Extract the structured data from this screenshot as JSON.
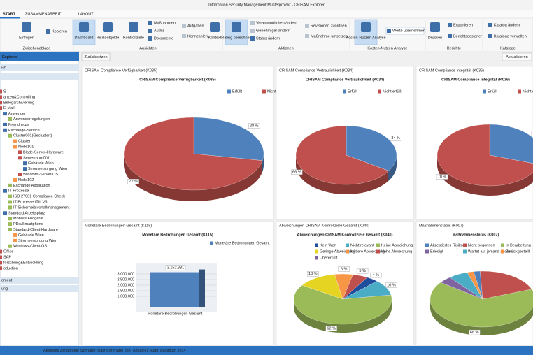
{
  "window": {
    "title": "Information Security Management Musterprojekt - CRISAM Explorer",
    "tabs": [
      "START",
      "ZUSAMMENARBEIT",
      "LAYOUT"
    ]
  },
  "ribbon": {
    "groups": [
      {
        "label": "Zwischenablage",
        "buttons": [
          "Einfügen",
          "Kopieren"
        ]
      },
      {
        "label": "Ansichten",
        "buttons": [
          "Dashboard",
          "Risikoobjekte",
          "Kontrollziele",
          "Maßnahmen",
          "Audits",
          "Dokumente",
          "Aufgaben",
          "Kennzahlen",
          "Kontext"
        ]
      },
      {
        "label": "Aktionen",
        "buttons": [
          "Rating berechnen",
          "Verantwortlichen ändern",
          "Genehmiger ändern",
          "Status ändern",
          "Revisionen zuordnen",
          "Maßnahme umsetzen"
        ]
      },
      {
        "label": "Kosten-Nutzen Analyse",
        "buttons": [
          "Kosten-Nutzen Analyse",
          "Werte übernehmen"
        ]
      },
      {
        "label": "Berichte",
        "buttons": [
          "Drucken",
          "Exportieren",
          "Berichtsdesigner"
        ]
      },
      {
        "label": "Kataloge",
        "buttons": [
          "Katalog ändern",
          "Kataloge verwalten"
        ]
      }
    ]
  },
  "explorer": {
    "title": "Explorer",
    "sections_top": [
      "ich"
    ],
    "sections_bottom": [
      "ement",
      "ung"
    ],
    "tree": [
      {
        "label": "S",
        "level": 0
      },
      {
        "label": "anzen&Controlling",
        "level": 0
      },
      {
        "label": "Belegarchivierung",
        "level": 0
      },
      {
        "label": "E-Mail",
        "level": 0
      },
      {
        "label": "Anwender",
        "level": 1
      },
      {
        "label": "Anwenderregelungen",
        "level": 2
      },
      {
        "label": "Fremdnetze",
        "level": 1
      },
      {
        "label": "Exchange-Service",
        "level": 1
      },
      {
        "label": "Cluster001(Geclustert)",
        "level": 2
      },
      {
        "label": "Cluster",
        "level": 3
      },
      {
        "label": "Node101",
        "level": 3
      },
      {
        "label": "Blade-Server-Hardware",
        "level": 4
      },
      {
        "label": "Serverraum001",
        "level": 4
      },
      {
        "label": "Gebäude Wien",
        "level": 5
      },
      {
        "label": "Stromversorgung Wien",
        "level": 5
      },
      {
        "label": "Windows-Server-OS",
        "level": 4
      },
      {
        "label": "Node102",
        "level": 3
      },
      {
        "label": "Exchange Applikation",
        "level": 2
      },
      {
        "label": "IT-Prozesse",
        "level": 1
      },
      {
        "label": "ISO 27001 Compliance Check",
        "level": 2
      },
      {
        "label": "IT-Prozesse ITIL V3",
        "level": 2
      },
      {
        "label": "IT-Sicherheitsvorfallmanagement",
        "level": 2
      },
      {
        "label": "Standard Arbeitsplatz",
        "level": 1
      },
      {
        "label": "Mobiles Endgerät",
        "level": 2
      },
      {
        "label": "PDA/Smartphone",
        "level": 2
      },
      {
        "label": "Standard-Client-Hardware",
        "level": 2
      },
      {
        "label": "Gebäude Wien",
        "level": 3
      },
      {
        "label": "Stromversorgung Wien",
        "level": 3
      },
      {
        "label": "Windows-Client-OS",
        "level": 2
      },
      {
        "label": "Office",
        "level": 0
      },
      {
        "label": "SAP",
        "level": 0
      },
      {
        "label": "forschung&Entwicklung",
        "level": 0
      },
      {
        "label": "oduktion",
        "level": 0
      }
    ]
  },
  "toolbar": {
    "reset": "Zurücksetzen",
    "refresh": "Aktualisieren"
  },
  "charts": [
    {
      "type": "pie",
      "caption": "CRISAM Compliance Verfügbarkeit (K035)",
      "title": "CRISAM Compliance Verfügbarkeit (K035)",
      "slices": [
        {
          "name": "Erfüllt",
          "color": "#4f81bd",
          "value": 28,
          "label": "28 %"
        },
        {
          "name": "Nicht erfüllt",
          "color": "#c0504d",
          "value": 72,
          "label": "72 %"
        }
      ]
    },
    {
      "type": "pie",
      "caption": "CRISAM Compliance Vertraulichkeit (K034)",
      "title": "CRISAM Compliance Vertraulichkeit (K034)",
      "slices": [
        {
          "name": "Erfüllt",
          "color": "#4f81bd",
          "value": 34,
          "label": "34 %"
        },
        {
          "name": "Nicht erfüllt",
          "color": "#c0504d",
          "value": 66,
          "label": "66 %"
        }
      ]
    },
    {
      "type": "pie",
      "caption": "CRISAM Compliance Integrität (K036)",
      "title": "CRISAM Compliance Integrität (K036)",
      "slices": [
        {
          "name": "Erfüllt",
          "color": "#4f81bd",
          "value": 30,
          "label": "30 %"
        },
        {
          "name": "Nicht erfüllt",
          "color": "#c0504d",
          "value": 70,
          "label": "70 %"
        }
      ]
    },
    {
      "type": "bar",
      "caption": "Monetäre Bedrohungen Gesamt (K115)",
      "title": "Monetäre Bedrohungen Gesamt (K115)",
      "series_name": "Monetäre Bedrohungen Gesamt",
      "color": "#4f81bd",
      "category": "Monetäre Bedrohungen Gesamt",
      "value": 3152381,
      "value_label": "3.152.381",
      "ylim": [
        0,
        3500000
      ],
      "yticks": [
        {
          "value": 1000000,
          "label": "1.000.000"
        },
        {
          "value": 1500000,
          "label": "1.500.000"
        },
        {
          "value": 2000000,
          "label": "2.000.000"
        },
        {
          "value": 2500000,
          "label": "2.500.000"
        },
        {
          "value": 3000000,
          "label": "3.000.000"
        }
      ]
    },
    {
      "type": "pie",
      "caption": "Abweichungen CRISAM Kontrollziele Gesamt (K040)",
      "title": "Abweichungen CRISAM Kontrollziele Gesamt (K040)",
      "slices": [
        {
          "name": "Kein Wert",
          "color": "#1f4e9c",
          "value": 4,
          "label": "4 %"
        },
        {
          "name": "Nicht relevant",
          "color": "#4bacc6",
          "value": 10,
          "label": "10 %"
        },
        {
          "name": "Keine Abweichung",
          "color": "#9bbb59",
          "value": 62,
          "label": "62 %"
        },
        {
          "name": "Geringe Abweichung",
          "color": "#e6d422",
          "value": 13,
          "label": "13 %"
        },
        {
          "name": "Mittlere Abweichung",
          "color": "#f79646",
          "value": 6,
          "label": "6 %"
        },
        {
          "name": "Hohe Abweichung",
          "color": "#c0504d",
          "value": 5,
          "label": "5 %"
        },
        {
          "name": "Übererfüllt",
          "color": "#8064a2"
        }
      ]
    },
    {
      "type": "pie",
      "caption": "Maßnahmenstatus (K007)",
      "title": "Maßnahmenstatus (K007)",
      "slices": [
        {
          "name": "Akzeptiertes Risiko",
          "color": "#4f81bd",
          "value": 2
        },
        {
          "name": "Nicht begonnen",
          "color": "#c0504d",
          "value": 20
        },
        {
          "name": "In Bearbeitung",
          "color": "#9bbb59",
          "value": 66,
          "label": "66 %"
        },
        {
          "name": "Erledigt",
          "color": "#8064a2",
          "value": 4
        },
        {
          "name": "Wartet auf jemand anderen",
          "color": "#4bacc6",
          "value": 6
        },
        {
          "name": "Zurückgestellt",
          "color": "#f79646",
          "value": 2
        }
      ]
    }
  ],
  "status": [
    "Aktuelles Zeitabfolge Szenario: Ratingszenario 888",
    "Aktuelles Audit: Auditplan 2014"
  ]
}
